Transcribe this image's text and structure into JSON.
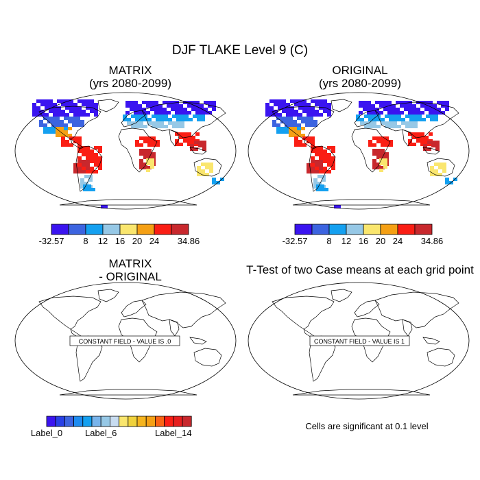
{
  "title": "DJF TLAKE Level 9 (C)",
  "panels": [
    {
      "line1": "MATRIX",
      "line2": "(yrs 2080-2099)"
    },
    {
      "line1": "ORIGINAL",
      "line2": "(yrs 2080-2099)"
    },
    {
      "line1": "MATRIX",
      "line2": "- ORIGINAL",
      "note": "CONSTANT FIELD - VALUE IS .0"
    },
    {
      "line1": "T-Test of two Case means at each grid point",
      "note": "CONSTANT FIELD - VALUE IS 1"
    }
  ],
  "colorbar_main": {
    "colors": [
      "#3a14f0",
      "#3c64e0",
      "#14a0f0",
      "#96c8e6",
      "#fae66e",
      "#f5a014",
      "#fa1e14",
      "#c8282d"
    ],
    "labels": [
      "-32.57",
      "8",
      "12",
      "16",
      "20",
      "24",
      "34.86"
    ]
  },
  "colorbar_diff": {
    "colors": [
      "#3a14f0",
      "#2840e6",
      "#3c64e0",
      "#1e8cf0",
      "#14a0f0",
      "#78b4eb",
      "#96c8e6",
      "#c8dcf0",
      "#fae66e",
      "#f0d23c",
      "#f5b41e",
      "#f5a014",
      "#fa6414",
      "#fa1e14",
      "#e61e1e",
      "#c8282d"
    ],
    "labels": [
      "Label_0",
      "Label_6",
      "Label_14"
    ]
  },
  "significance_note": "Cells are significant at 0.1 level"
}
